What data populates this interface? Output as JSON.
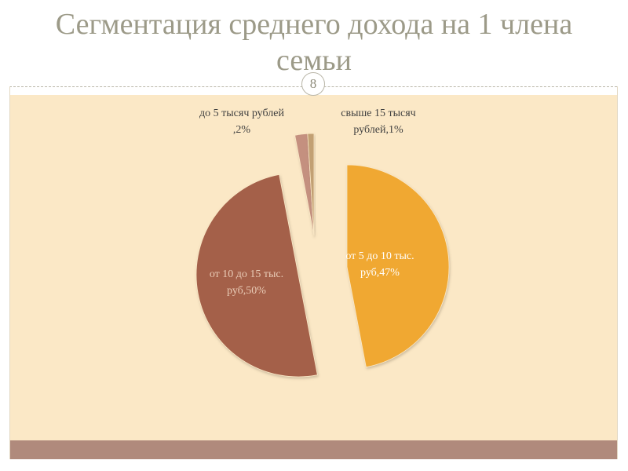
{
  "slide": {
    "title": "Сегментация среднего дохода на 1 члена семьи",
    "page_number": "8",
    "panel_color": "#fbe8c6",
    "footer_color": "#b08a7c"
  },
  "chart_data": {
    "type": "pie",
    "title": "",
    "legend": "none",
    "slices": [
      {
        "category": "от 5 до 10 тыс. руб",
        "label_lines": [
          "от 5 до 10 тыс.",
          "руб,47%"
        ],
        "value": 47,
        "color": "#f0a830",
        "label_color": "#ffffff"
      },
      {
        "category": "от 10 до 15 тыс. руб",
        "label_lines": [
          "от 10 до 15 тыс.",
          "руб,50%"
        ],
        "value": 50,
        "color": "#a4614a",
        "label_color": "#e9cbb6"
      },
      {
        "category": "до 5 тысяч рублей",
        "label_lines": [
          "до 5 тысяч рублей",
          ",2%"
        ],
        "value": 2,
        "color": "#c4907f",
        "label_color": "#3f3f3f"
      },
      {
        "category": "свыше 15 тысяч рублей",
        "label_lines": [
          "свыше 15 тысяч",
          "рублей,1%"
        ],
        "value": 1,
        "color": "#c2a073",
        "label_color": "#3f3f3f"
      }
    ]
  }
}
